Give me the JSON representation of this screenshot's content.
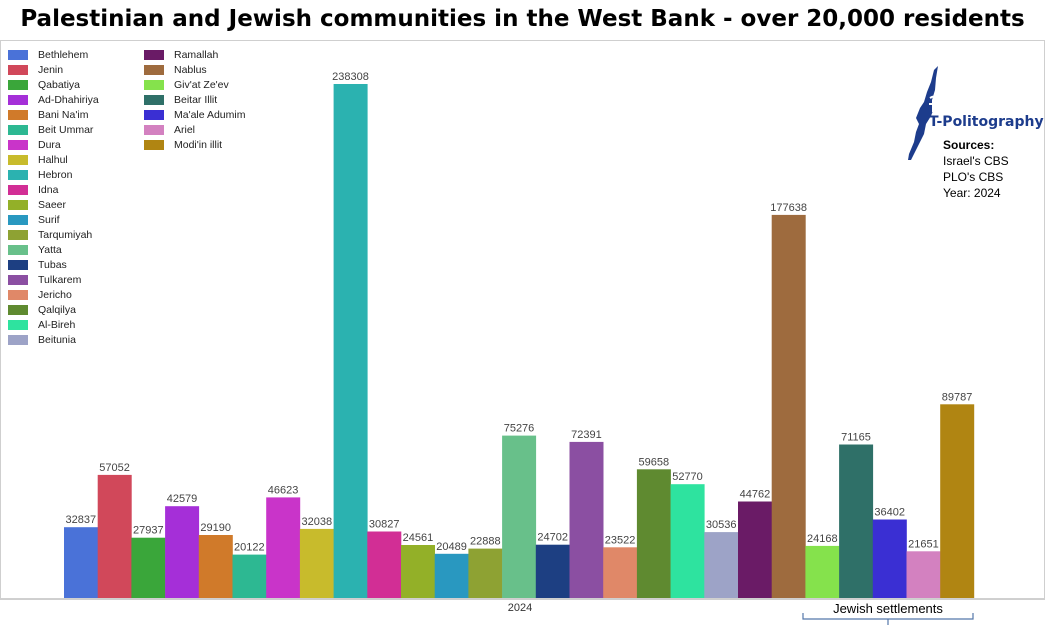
{
  "title": "Palestinian and Jewish communities in the West Bank - over 20,000 residents",
  "logo_text": "T-Politography",
  "sources": {
    "heading": "Sources:",
    "lines": [
      "Israel's CBS",
      "PLO's CBS",
      "Year: 2024"
    ]
  },
  "bracket_label": "Jewish settlements",
  "chart_data": {
    "type": "bar",
    "xlabel": "",
    "ylabel": "",
    "categories": [
      "2024"
    ],
    "ylim": [
      0,
      245000
    ],
    "grid": false,
    "legend_position": "top-left",
    "series": [
      {
        "name": "Bethlehem",
        "value": 32837,
        "color": "#4a72d8"
      },
      {
        "name": "Jenin",
        "value": 57052,
        "color": "#d1485a"
      },
      {
        "name": "Qabatiya",
        "value": 27937,
        "color": "#3aa63a"
      },
      {
        "name": "Ad-Dhahiriya",
        "value": 42579,
        "color": "#a52fd8"
      },
      {
        "name": "Bani Na'im",
        "value": 29190,
        "color": "#d07a2a"
      },
      {
        "name": "Beit Ummar",
        "value": 20122,
        "color": "#2db892"
      },
      {
        "name": "Dura",
        "value": 46623,
        "color": "#c934c9"
      },
      {
        "name": "Halhul",
        "value": 32038,
        "color": "#c8bb2c"
      },
      {
        "name": "Hebron",
        "value": 238308,
        "color": "#2bb2b0"
      },
      {
        "name": "Idna",
        "value": 30827,
        "color": "#d22e95"
      },
      {
        "name": "Saeer",
        "value": 24561,
        "color": "#93b028"
      },
      {
        "name": "Surif",
        "value": 20489,
        "color": "#2998c0"
      },
      {
        "name": "Tarqumiyah",
        "value": 22888,
        "color": "#8ea233"
      },
      {
        "name": "Yatta",
        "value": 75276,
        "color": "#68c08a"
      },
      {
        "name": "Tubas",
        "value": 24702,
        "color": "#1d3f82"
      },
      {
        "name": "Tulkarem",
        "value": 72391,
        "color": "#8b4fa2"
      },
      {
        "name": "Jericho",
        "value": 23522,
        "color": "#e08868"
      },
      {
        "name": "Qalqilya",
        "value": 59658,
        "color": "#5f8a30"
      },
      {
        "name": "Al-Bireh",
        "value": 52770,
        "color": "#2ee39f"
      },
      {
        "name": "Beitunia",
        "value": 30536,
        "color": "#9da3c7"
      },
      {
        "name": "Ramallah",
        "value": 44762,
        "color": "#6a1b66"
      },
      {
        "name": "Nablus",
        "value": 177638,
        "color": "#9e6b3e"
      },
      {
        "name": "Giv'at Ze'ev",
        "value": 24168,
        "color": "#85e24c"
      },
      {
        "name": "Beitar Illit",
        "value": 71165,
        "color": "#2f7068"
      },
      {
        "name": "Ma'ale Adumim",
        "value": 36402,
        "color": "#3a2fd3"
      },
      {
        "name": "Ariel",
        "value": 21651,
        "color": "#d381c0"
      },
      {
        "name": "Modi'in illit",
        "value": 89787,
        "color": "#b08512"
      }
    ]
  }
}
